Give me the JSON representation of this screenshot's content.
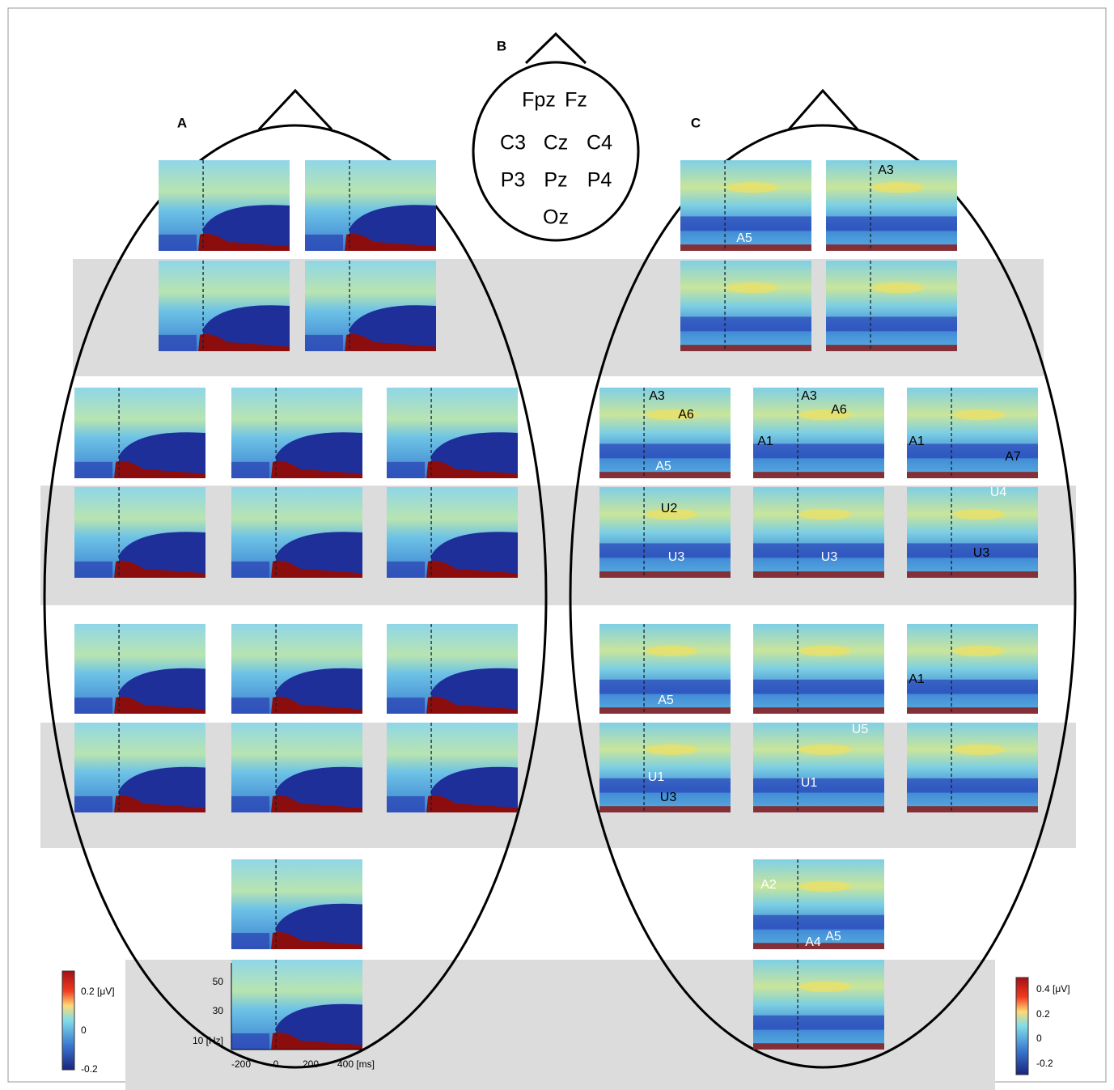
{
  "panel_a": {
    "label": "A",
    "colorbar": {
      "ticks": [
        "0.2 [μV]",
        "0",
        "-0.2"
      ]
    },
    "axes": {
      "yticks": [
        "50",
        "30",
        "10 [Hz]"
      ],
      "xticks": [
        "-200",
        "0",
        "200",
        "400 [ms]"
      ]
    }
  },
  "panel_b": {
    "label": "B",
    "electrodes": [
      "Fpz",
      "Fz",
      "C3",
      "Cz",
      "C4",
      "P3",
      "Pz",
      "P4",
      "Oz"
    ]
  },
  "panel_c": {
    "label": "C",
    "colorbar": {
      "ticks": [
        "0.4 [μV]",
        "0.2",
        "0",
        "-0.2"
      ]
    },
    "annotations": [
      "A5",
      "A3",
      "A3",
      "A6",
      "A5",
      "A3",
      "A6",
      "A1",
      "A1",
      "A7",
      "U2",
      "U3",
      "U3",
      "U4",
      "U3",
      "A5",
      "A1",
      "U5",
      "U1",
      "U1",
      "U3",
      "A2",
      "A4",
      "A5"
    ]
  }
}
